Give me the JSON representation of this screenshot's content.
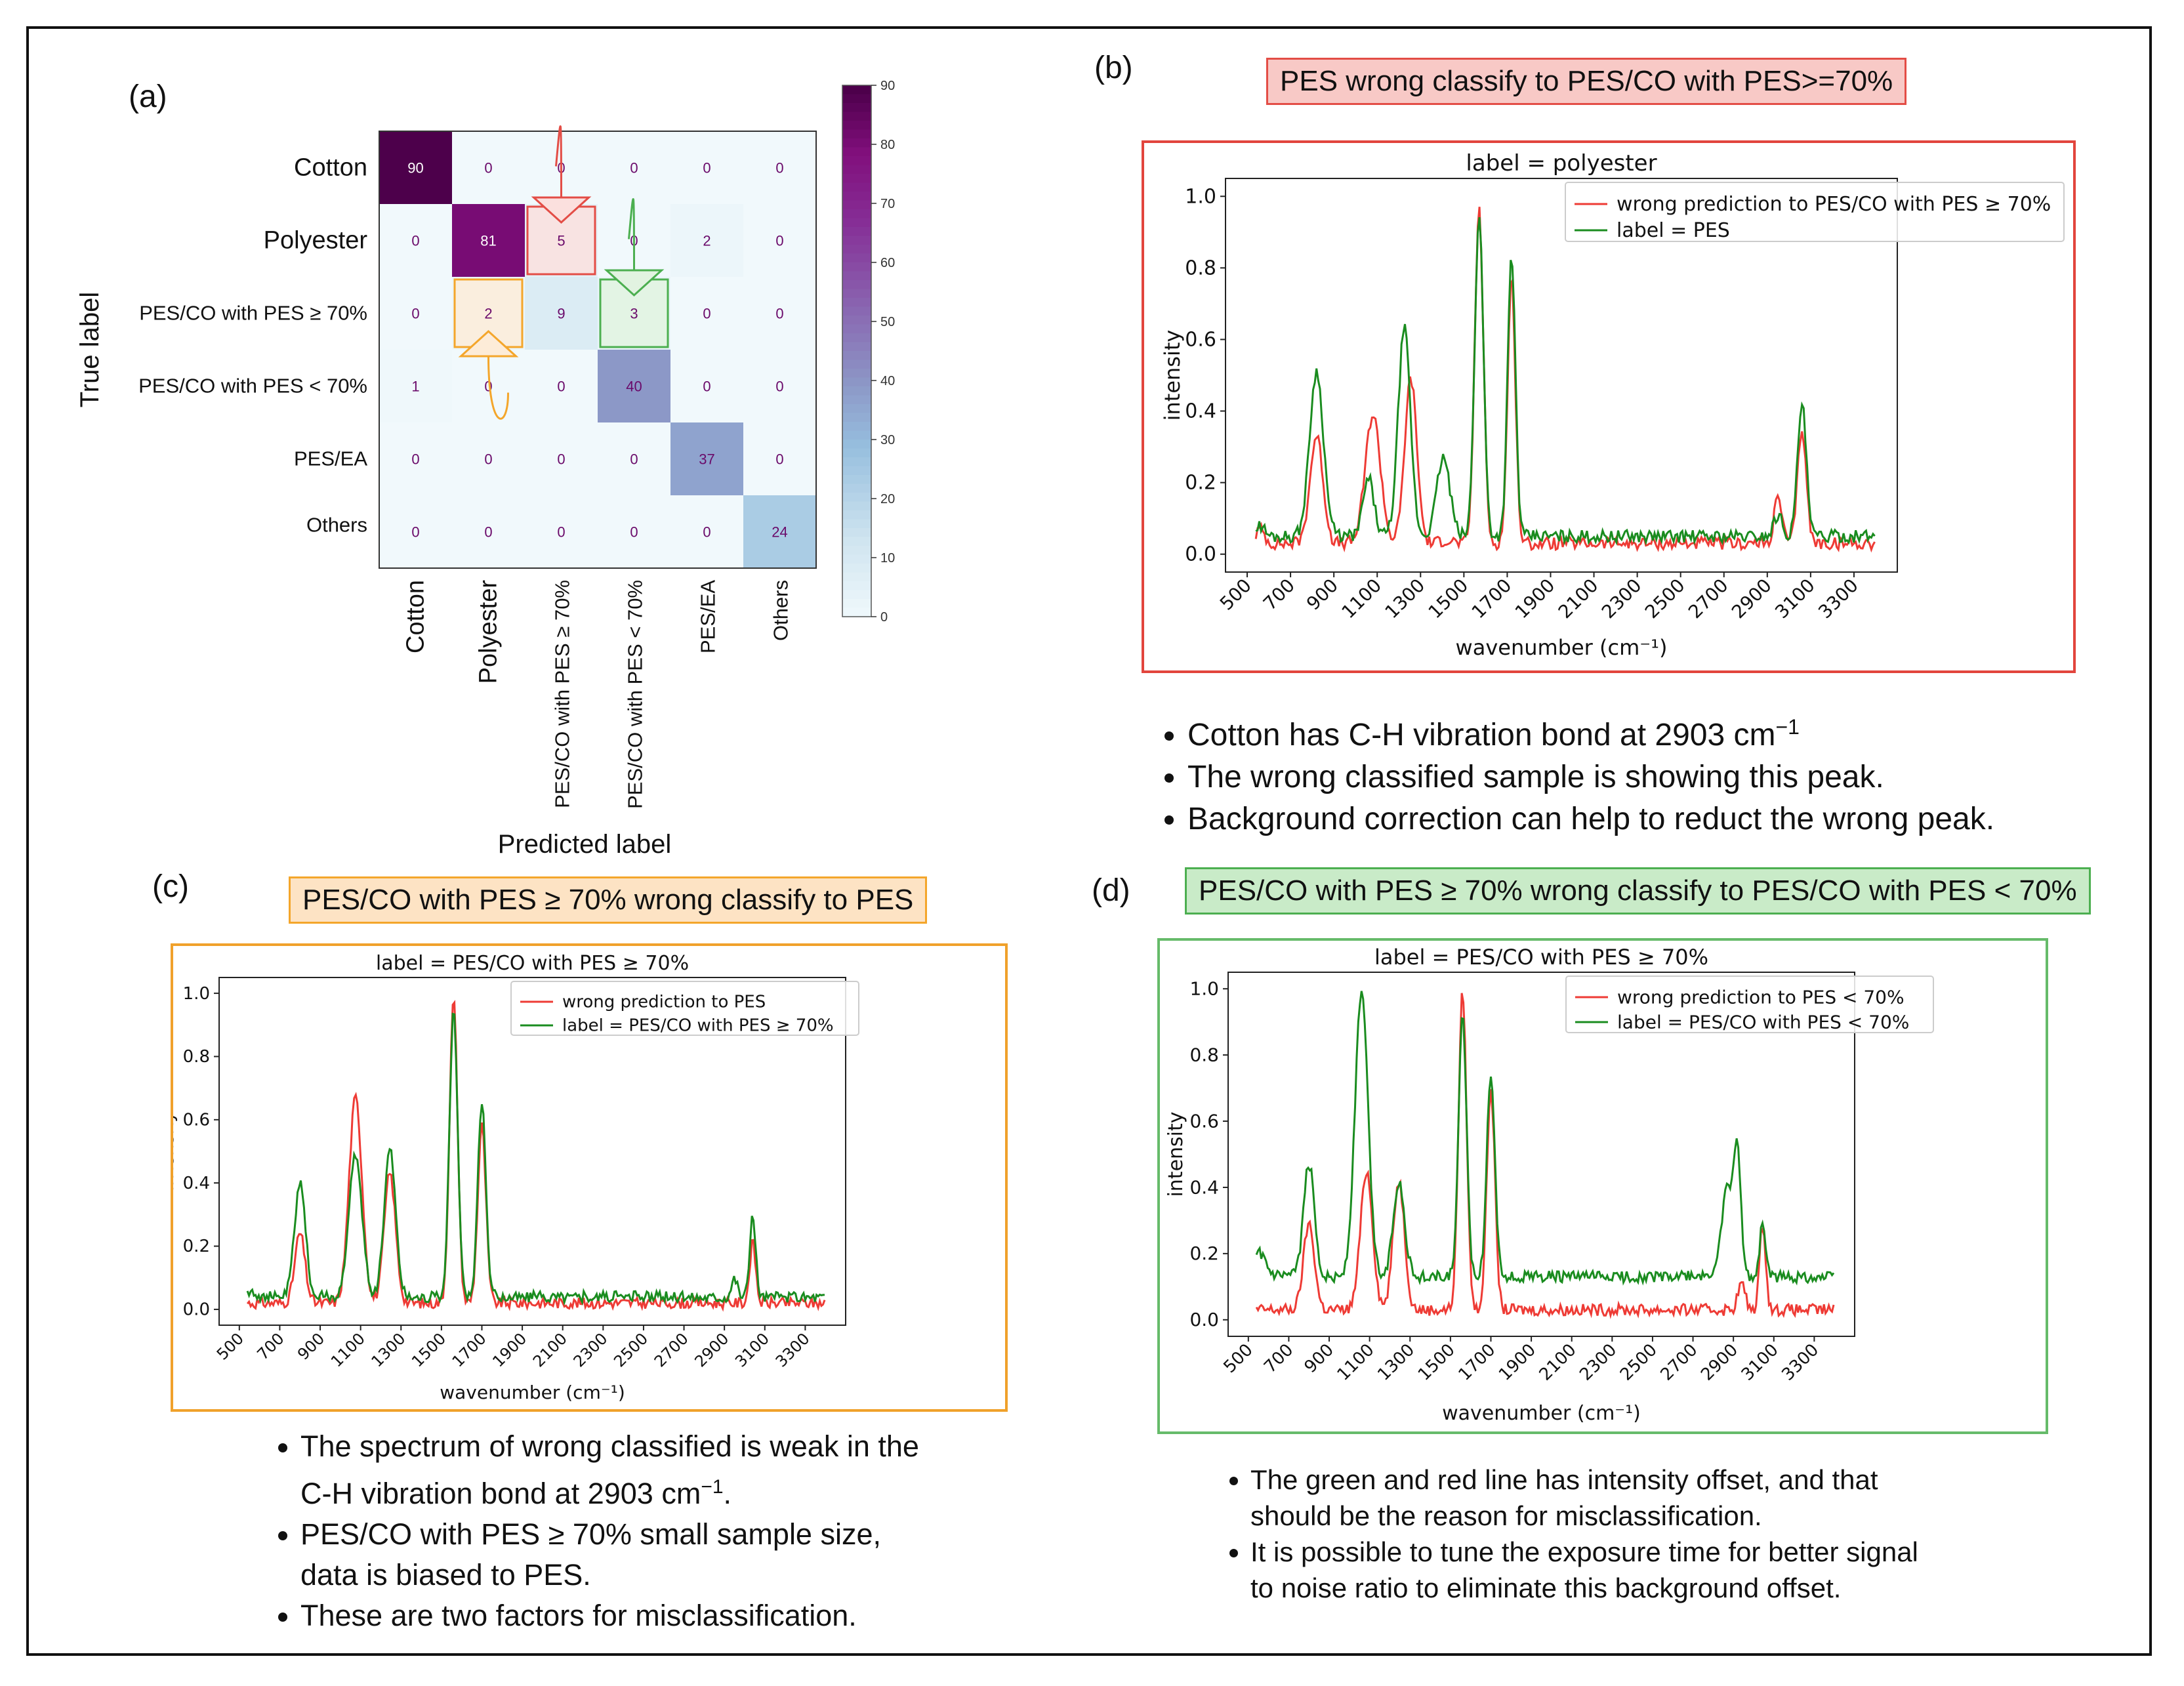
{
  "panel_letters": {
    "a": "(a)",
    "b": "(b)",
    "c": "(c)",
    "d": "(d)"
  },
  "titles": {
    "b": "PES wrong classify to PES/CO with PES>=70%",
    "c": "PES/CO with PES ≥ 70% wrong classify to PES",
    "d": "PES/CO with PES ≥ 70% wrong classify to PES/CO with PES < 70%"
  },
  "notes": {
    "b": [
      "Cotton has C-H vibration bond at 2903 cm",
      "The wrong classified sample is showing this peak.",
      "Background correction can help to reduct the wrong peak."
    ],
    "b_superscript": "−1",
    "c": [
      "The spectrum of wrong classified is weak in the",
      "C-H vibration bond at 2903 cm",
      "PES/CO with PES ≥ 70% small sample size,",
      "data is biased to PES.",
      "These are two factors for misclassification."
    ],
    "c_superscript": "−1",
    "c_period": ".",
    "d": [
      "The green and red line has intensity offset, and that",
      "should be the reason for misclassification.",
      "It is possible to tune the exposure time for better signal",
      "to noise ratio to eliminate this background offset."
    ]
  },
  "colors": {
    "wrong": "#ee3b35",
    "label": "#1a8c1f",
    "cm_low": "#f1f9fc",
    "cm_high": "#4d004b"
  },
  "chart_data": [
    {
      "type": "heatmap",
      "id": "confusion-matrix",
      "ylabel": "True label",
      "xlabel": "Predicted label",
      "row_labels": [
        "Cotton",
        "Polyester",
        "PES/CO with PES ≥ 70%",
        "PES/CO with PES < 70%",
        "PES/EA",
        "Others"
      ],
      "col_labels": [
        "Cotton",
        "Polyester",
        "PES/CO with PES ≥ 70%",
        "PES/CO with PES < 70%",
        "PES/EA",
        "Others"
      ],
      "values": [
        [
          90,
          0,
          0,
          0,
          0,
          0
        ],
        [
          0,
          81,
          5,
          0,
          2,
          0
        ],
        [
          0,
          2,
          9,
          3,
          0,
          0
        ],
        [
          1,
          0,
          0,
          40,
          0,
          0
        ],
        [
          0,
          0,
          0,
          0,
          37,
          0
        ],
        [
          0,
          0,
          0,
          0,
          0,
          24
        ]
      ],
      "colorbar": {
        "range": [
          0,
          90
        ],
        "ticks": [
          0,
          10,
          20,
          30,
          40,
          50,
          60,
          70,
          80,
          90
        ]
      },
      "highlights": [
        {
          "row": 1,
          "col": 2,
          "color": "red",
          "from": [
            0,
            2
          ]
        },
        {
          "row": 2,
          "col": 1,
          "color": "orange",
          "from": [
            3,
            1
          ]
        },
        {
          "row": 2,
          "col": 3,
          "color": "green",
          "from": [
            1,
            3
          ]
        }
      ]
    },
    {
      "type": "line",
      "id": "spectrum-b",
      "title": "label = polyester",
      "xlabel": "wavenumber (cm⁻¹)",
      "ylabel": "intensity",
      "xticks": [
        500,
        700,
        900,
        1100,
        1300,
        1500,
        1700,
        1900,
        2100,
        2300,
        2500,
        2700,
        2900,
        3100,
        3300
      ],
      "ylim": [
        0,
        1.0
      ],
      "yticks": [
        0.0,
        0.2,
        0.4,
        0.6,
        0.8,
        1.0
      ],
      "legend": "top-right",
      "series": [
        {
          "name": "wrong prediction to PES/CO with PES ≥ 70%",
          "color": "wrong",
          "baseline": 0.03,
          "peaks": [
            [
              560,
              0.04,
              20
            ],
            [
              820,
              0.3,
              30
            ],
            [
              1080,
              0.36,
              35
            ],
            [
              1255,
              0.46,
              28
            ],
            [
              1420,
              0.01,
              30
            ],
            [
              1570,
              0.93,
              20
            ],
            [
              1720,
              0.74,
              18
            ],
            [
              2950,
              0.13,
              18
            ],
            [
              3060,
              0.32,
              20
            ]
          ]
        },
        {
          "name": "label = PES",
          "color": "label",
          "baseline": 0.05,
          "peaks": [
            [
              560,
              0.03,
              20
            ],
            [
              820,
              0.46,
              32
            ],
            [
              1060,
              0.16,
              25
            ],
            [
              1225,
              0.58,
              28
            ],
            [
              1405,
              0.22,
              30
            ],
            [
              1570,
              0.9,
              20
            ],
            [
              1720,
              0.78,
              18
            ],
            [
              2950,
              0.06,
              20
            ],
            [
              3060,
              0.37,
              20
            ]
          ]
        }
      ]
    },
    {
      "type": "line",
      "id": "spectrum-c",
      "title": "label = PES/CO with PES ≥ 70%",
      "xlabel": "wavenumber (cm⁻¹)",
      "ylabel": "intensity",
      "xticks": [
        500,
        700,
        900,
        1100,
        1300,
        1500,
        1700,
        1900,
        2100,
        2300,
        2500,
        2700,
        2900,
        3100,
        3300
      ],
      "ylim": [
        0,
        1.0
      ],
      "yticks": [
        0.0,
        0.2,
        0.4,
        0.6,
        0.8,
        1.0
      ],
      "legend": "top-right",
      "series": [
        {
          "name": "wrong prediction to PES",
          "color": "wrong",
          "baseline": 0.02,
          "peaks": [
            [
              800,
              0.22,
              25
            ],
            [
              1075,
              0.65,
              32
            ],
            [
              1245,
              0.41,
              28
            ],
            [
              1560,
              0.96,
              20
            ],
            [
              1700,
              0.56,
              20
            ],
            [
              3040,
              0.19,
              15
            ]
          ]
        },
        {
          "name": "label = PES/CO with PES ≥ 70%",
          "color": "label",
          "baseline": 0.04,
          "peaks": [
            [
              560,
              0.02,
              20
            ],
            [
              800,
              0.36,
              27
            ],
            [
              1075,
              0.45,
              32
            ],
            [
              1245,
              0.47,
              28
            ],
            [
              1560,
              0.91,
              20
            ],
            [
              1700,
              0.61,
              20
            ],
            [
              2950,
              0.06,
              15
            ],
            [
              3040,
              0.25,
              15
            ]
          ]
        }
      ]
    },
    {
      "type": "line",
      "id": "spectrum-d",
      "title": "label = PES/CO with PES ≥ 70%",
      "xlabel": "wavenumber (cm⁻¹)",
      "ylabel": "intensity",
      "xticks": [
        500,
        700,
        900,
        1100,
        1300,
        1500,
        1700,
        1900,
        2100,
        2300,
        2500,
        2700,
        2900,
        3100,
        3300
      ],
      "ylim": [
        0,
        1.0
      ],
      "yticks": [
        0.0,
        0.2,
        0.4,
        0.6,
        0.8,
        1.0
      ],
      "legend": "top-right",
      "series": [
        {
          "name": "wrong prediction to PES < 70%",
          "color": "wrong",
          "baseline": 0.03,
          "peaks": [
            [
              800,
              0.26,
              27
            ],
            [
              1085,
              0.42,
              30
            ],
            [
              1245,
              0.39,
              28
            ],
            [
              1560,
              0.96,
              20
            ],
            [
              1700,
              0.67,
              20
            ],
            [
              2940,
              0.08,
              18
            ],
            [
              3045,
              0.26,
              15
            ]
          ]
        },
        {
          "name": "label = PES/CO with PES < 70%",
          "color": "label",
          "baseline": 0.13,
          "peaks": [
            [
              560,
              0.07,
              25
            ],
            [
              800,
              0.34,
              27
            ],
            [
              1060,
              0.86,
              32
            ],
            [
              1245,
              0.29,
              28
            ],
            [
              1560,
              0.78,
              20
            ],
            [
              1700,
              0.62,
              20
            ],
            [
              2870,
              0.26,
              30
            ],
            [
              2920,
              0.33,
              18
            ],
            [
              3045,
              0.16,
              15
            ]
          ]
        }
      ]
    }
  ]
}
